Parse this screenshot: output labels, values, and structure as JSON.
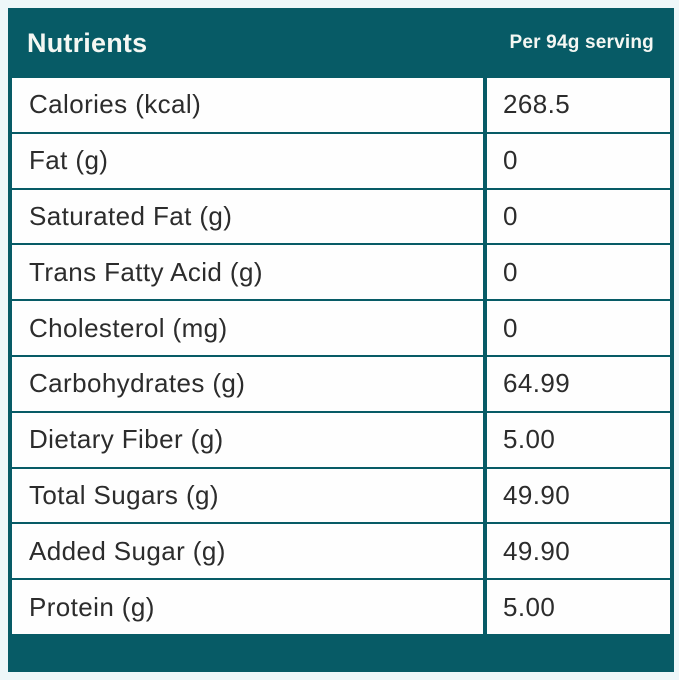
{
  "colors": {
    "teal": "#075b66",
    "page_background": "#eef7f9",
    "row_background": "#fefefe",
    "text": "#2c2c2c",
    "header_text": "#f4f7f3"
  },
  "header": {
    "title": "Nutrients",
    "serving": "Per 94g serving"
  },
  "chart_data": {
    "type": "table",
    "title": "Nutrients",
    "columns": [
      "Nutrients",
      "Per 94g serving"
    ],
    "rows": [
      {
        "label": "Calories (kcal)",
        "value": "268.5"
      },
      {
        "label": "Fat (g)",
        "value": "0"
      },
      {
        "label": "Saturated Fat (g)",
        "value": "0"
      },
      {
        "label": "Trans Fatty Acid (g)",
        "value": "0"
      },
      {
        "label": "Cholesterol (mg)",
        "value": "0"
      },
      {
        "label": "Carbohydrates (g)",
        "value": "64.99"
      },
      {
        "label": "Dietary Fiber (g)",
        "value": "5.00"
      },
      {
        "label": "Total Sugars (g)",
        "value": "49.90"
      },
      {
        "label": "Added Sugar (g)",
        "value": "49.90"
      },
      {
        "label": "Protein (g)",
        "value": "5.00"
      }
    ]
  }
}
